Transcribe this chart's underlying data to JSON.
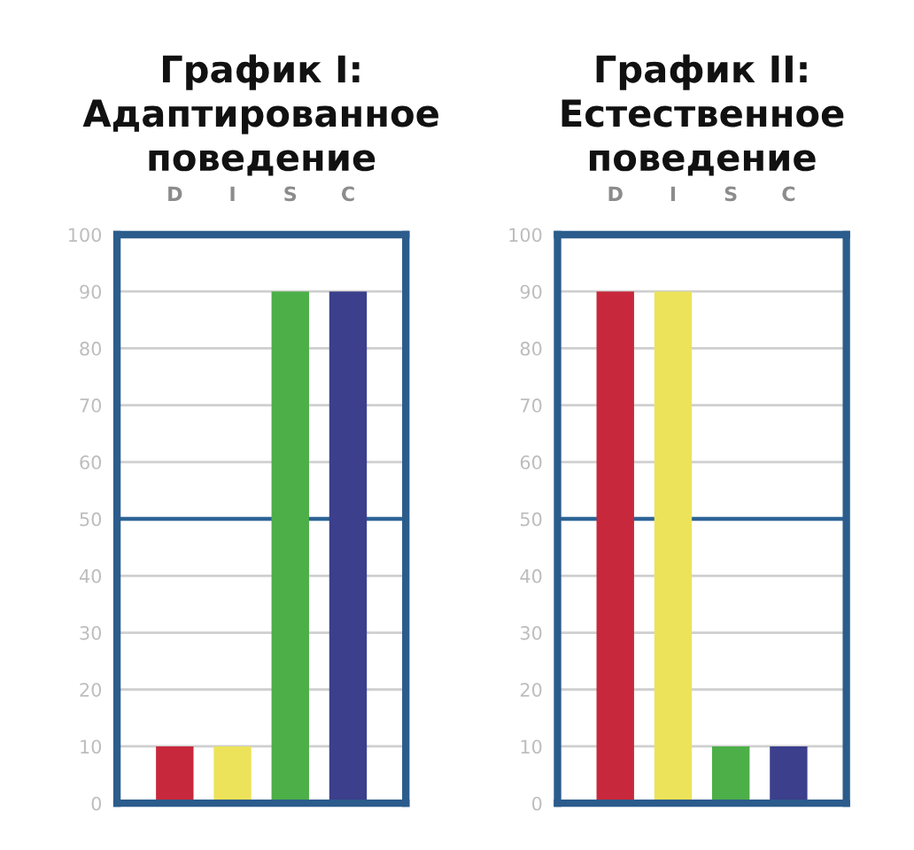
{
  "chart_data": [
    {
      "type": "bar",
      "title": "График I:\nАдаптированное\nповедение",
      "categories": [
        "D",
        "I",
        "S",
        "C"
      ],
      "values": [
        10,
        10,
        90,
        90
      ],
      "colors": [
        "#c8283c",
        "#ece35a",
        "#4caf48",
        "#3b3f8c"
      ],
      "ylim": [
        0,
        100
      ],
      "yticks": [
        0,
        10,
        20,
        30,
        40,
        50,
        60,
        70,
        80,
        90,
        100
      ],
      "grid": "y",
      "ref_lines": [
        {
          "axis": "y",
          "value": 50,
          "color": "#2e6496"
        }
      ]
    },
    {
      "type": "bar",
      "title": "График II:\nЕстественное\nповедение",
      "categories": [
        "D",
        "I",
        "S",
        "C"
      ],
      "values": [
        90,
        90,
        10,
        10
      ],
      "colors": [
        "#c8283c",
        "#ece35a",
        "#4caf48",
        "#3b3f8c"
      ],
      "ylim": [
        0,
        100
      ],
      "yticks": [
        0,
        10,
        20,
        30,
        40,
        50,
        60,
        70,
        80,
        90,
        100
      ],
      "grid": "y",
      "ref_lines": [
        {
          "axis": "y",
          "value": 50,
          "color": "#2e6496"
        }
      ]
    }
  ]
}
